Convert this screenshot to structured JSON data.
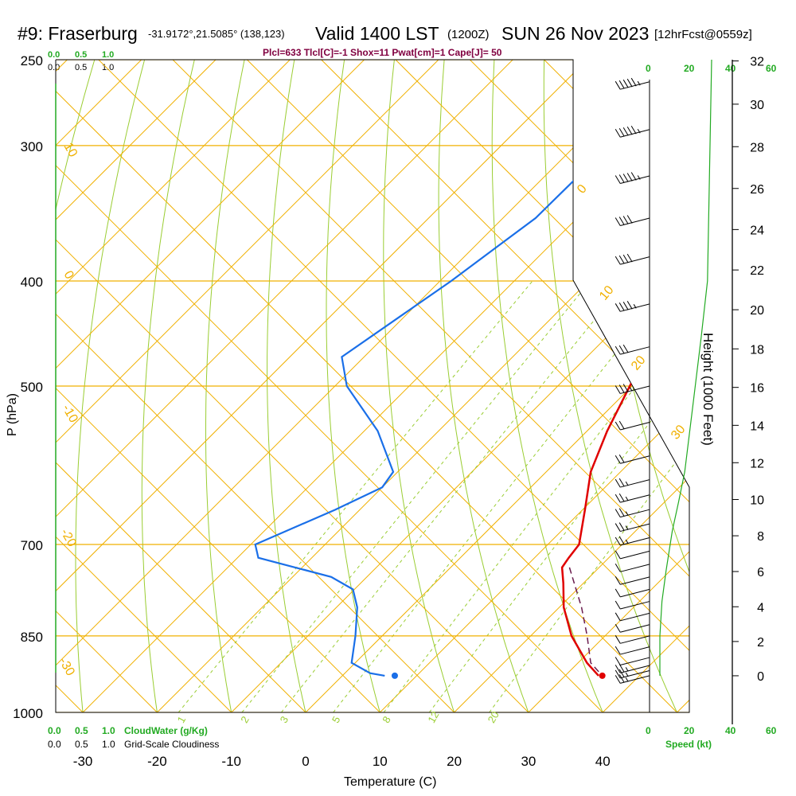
{
  "header": {
    "station": "#9: Fraserburg",
    "coords": "-31.9172°,21.5085° (138,123)",
    "valid": "Valid 1400 LST",
    "utc": "(1200Z)",
    "date": "SUN 26 Nov 2023",
    "fcst": "[12hrFcst@0559z]",
    "indices": "Plcl=633 Tlcl[C]=-1 Shox=11 Pwat[cm]=1 Cape[J]= 50"
  },
  "colors": {
    "temp": "#e00000",
    "dewpoint": "#1a6fe8",
    "isobar": "#f0b000",
    "green": "#22aa22",
    "purple": "#800040",
    "mixing": "#9acd32",
    "parcel": "#6a1b4d"
  },
  "chart_data": {
    "type": "skew-t",
    "title": "#9: Fraserburg Valid 1400 LST SUN 26 Nov 2023",
    "xlabel": "Temperature (C)",
    "ylabel": "P (hPa)",
    "right_label": "Height (1000 Feet)",
    "xlim": [
      -34,
      46
    ],
    "pressure_range": [
      1000,
      250
    ],
    "x_ticks": [
      -30,
      -20,
      -10,
      0,
      10,
      20,
      30,
      40
    ],
    "pressure_ticks": [
      250,
      300,
      400,
      500,
      700,
      850,
      1000
    ],
    "height_ticks_kft": [
      0,
      2,
      4,
      6,
      8,
      10,
      12,
      14,
      16,
      18,
      20,
      22,
      24,
      26,
      28,
      30,
      32
    ],
    "isotherm_labels": [
      {
        "text": "10",
        "t": -40
      },
      {
        "text": "0",
        "t": -38
      },
      {
        "text": "-10",
        "t": -43
      },
      {
        "text": "-20",
        "t": -42
      },
      {
        "text": "-30",
        "t": -41
      },
      {
        "text": "0",
        "t": 15
      },
      {
        "text": "10",
        "t": 12
      },
      {
        "text": "20",
        "t": 19
      },
      {
        "text": "30",
        "t": 20
      }
    ],
    "mixing_ratio_labels": [
      "1",
      "2",
      "3",
      "5",
      "8",
      "12",
      "20"
    ],
    "cloud_scale_top_green": [
      "0.0",
      "0.5",
      "1.0"
    ],
    "cloud_scale_top_black": [
      "0.0",
      "0.5",
      "1.0"
    ],
    "cloud_scale_bottom_green": [
      "0.0",
      "0.5",
      "1.0"
    ],
    "cloud_scale_bottom_black": [
      "0.0",
      "0.5",
      "1.0"
    ],
    "cloudwater_label": "CloudWater (g/Kg)",
    "cloudiness_label": "Grid-Scale Cloudiness",
    "speed_label": "Speed (kt)",
    "speed_ticks_top": [
      "0",
      "20",
      "40",
      "60"
    ],
    "speed_ticks_bottom": [
      "0",
      "20",
      "40",
      "60"
    ],
    "temperature_series": {
      "name": "Temperature",
      "points": [
        [
          260,
          -22.9
        ],
        [
          300,
          -17.4
        ],
        [
          350,
          -12.3
        ],
        [
          400,
          -7.2
        ],
        [
          450,
          -3.5
        ],
        [
          500,
          -0.3
        ],
        [
          550,
          2.7
        ],
        [
          600,
          6.0
        ],
        [
          650,
          10.3
        ],
        [
          700,
          14.2
        ],
        [
          720,
          14.6
        ],
        [
          735,
          15.0
        ],
        [
          760,
          17.3
        ],
        [
          800,
          20.6
        ],
        [
          850,
          25.5
        ],
        [
          900,
          31.2
        ],
        [
          925,
          34.5
        ]
      ]
    },
    "dewpoint_series": {
      "name": "Dewpoint",
      "points": [
        [
          260,
          -38.0
        ],
        [
          300,
          -37.2
        ],
        [
          320,
          -35.5
        ],
        [
          350,
          -35.6
        ],
        [
          400,
          -38.5
        ],
        [
          470,
          -43.0
        ],
        [
          500,
          -38.4
        ],
        [
          550,
          -28.2
        ],
        [
          600,
          -20.6
        ],
        [
          620,
          -20.0
        ],
        [
          650,
          -23.3
        ],
        [
          700,
          -29.4
        ],
        [
          720,
          -27.2
        ],
        [
          750,
          -14.8
        ],
        [
          770,
          -10.2
        ],
        [
          800,
          -7.2
        ],
        [
          850,
          -3.6
        ],
        [
          900,
          -0.5
        ],
        [
          920,
          3.4
        ],
        [
          925,
          5.7
        ]
      ]
    },
    "parcel_series": {
      "name": "Parcel",
      "points": [
        [
          735,
          16.0
        ],
        [
          800,
          23.0
        ],
        [
          850,
          27.6
        ],
        [
          900,
          31.7
        ],
        [
          925,
          35.0
        ]
      ]
    },
    "surface_points": {
      "temperature": 35.0,
      "dewpoint": 12.0,
      "pressure": 925
    },
    "wind_speed_profile": [
      [
        250,
        30
      ],
      [
        400,
        28
      ],
      [
        450,
        25
      ],
      [
        520,
        21
      ],
      [
        600,
        17
      ],
      [
        640,
        14
      ],
      [
        680,
        11
      ],
      [
        740,
        8
      ],
      [
        790,
        6
      ],
      [
        850,
        5
      ],
      [
        900,
        5
      ],
      [
        925,
        5
      ]
    ],
    "wind_barbs": [
      {
        "p": 262,
        "spd": 45
      },
      {
        "p": 290,
        "spd": 45
      },
      {
        "p": 320,
        "spd": 45
      },
      {
        "p": 350,
        "spd": 40
      },
      {
        "p": 380,
        "spd": 40
      },
      {
        "p": 420,
        "spd": 35
      },
      {
        "p": 460,
        "spd": 30
      },
      {
        "p": 500,
        "spd": 25
      },
      {
        "p": 540,
        "spd": 20
      },
      {
        "p": 580,
        "spd": 20
      },
      {
        "p": 610,
        "spd": 15
      },
      {
        "p": 630,
        "spd": 15
      },
      {
        "p": 650,
        "spd": 15
      },
      {
        "p": 670,
        "spd": 15
      },
      {
        "p": 690,
        "spd": 15
      },
      {
        "p": 710,
        "spd": 10
      },
      {
        "p": 730,
        "spd": 10
      },
      {
        "p": 750,
        "spd": 10
      },
      {
        "p": 770,
        "spd": 10
      },
      {
        "p": 790,
        "spd": 10
      },
      {
        "p": 810,
        "spd": 10
      },
      {
        "p": 830,
        "spd": 10
      },
      {
        "p": 850,
        "spd": 10
      },
      {
        "p": 870,
        "spd": 10
      },
      {
        "p": 890,
        "spd": 10
      },
      {
        "p": 905,
        "spd": 15
      },
      {
        "p": 915,
        "spd": 15
      },
      {
        "p": 925,
        "spd": 15
      }
    ]
  }
}
